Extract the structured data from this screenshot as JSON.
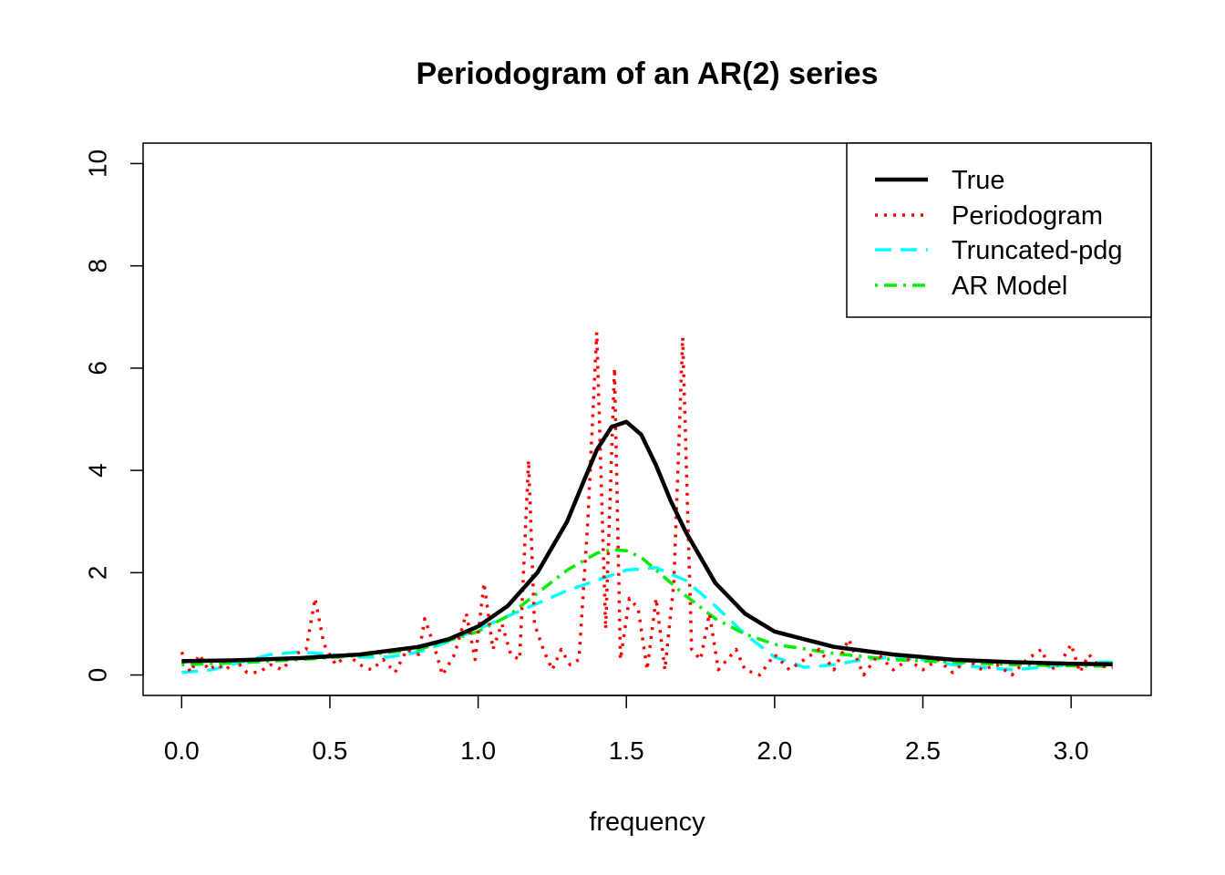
{
  "chart_data": {
    "type": "line",
    "title": "Periodogram of an AR(2) series",
    "xlabel": "frequency",
    "ylabel": "",
    "xlim": [
      -0.13,
      3.27
    ],
    "ylim": [
      -0.4,
      10.4
    ],
    "x_ticks": [
      0.0,
      0.5,
      1.0,
      1.5,
      2.0,
      2.5,
      3.0
    ],
    "x_tick_labels": [
      "0.0",
      "0.5",
      "1.0",
      "1.5",
      "2.0",
      "2.5",
      "3.0"
    ],
    "y_ticks": [
      0,
      2,
      4,
      6,
      8,
      10
    ],
    "y_tick_labels": [
      "0",
      "2",
      "4",
      "6",
      "8",
      "10"
    ],
    "grid": false,
    "legend_position": "top-right",
    "series": [
      {
        "name": "True",
        "color": "#000000",
        "style": "solid",
        "x": [
          0.0,
          0.2,
          0.4,
          0.6,
          0.8,
          0.9,
          1.0,
          1.1,
          1.2,
          1.3,
          1.35,
          1.4,
          1.45,
          1.5,
          1.55,
          1.6,
          1.65,
          1.7,
          1.8,
          1.9,
          2.0,
          2.2,
          2.4,
          2.6,
          2.8,
          3.0,
          3.14
        ],
        "values": [
          0.27,
          0.29,
          0.33,
          0.4,
          0.55,
          0.7,
          0.95,
          1.35,
          2.0,
          3.0,
          3.7,
          4.4,
          4.85,
          4.95,
          4.7,
          4.1,
          3.4,
          2.8,
          1.8,
          1.2,
          0.85,
          0.55,
          0.4,
          0.3,
          0.25,
          0.22,
          0.21
        ]
      },
      {
        "name": "Periodogram",
        "color": "#ff0000",
        "style": "dotted",
        "x": [
          0.0,
          0.03,
          0.06,
          0.09,
          0.12,
          0.15,
          0.18,
          0.22,
          0.26,
          0.3,
          0.34,
          0.38,
          0.42,
          0.45,
          0.48,
          0.52,
          0.56,
          0.6,
          0.64,
          0.68,
          0.72,
          0.76,
          0.8,
          0.82,
          0.85,
          0.88,
          0.92,
          0.96,
          0.99,
          1.02,
          1.05,
          1.08,
          1.11,
          1.14,
          1.17,
          1.19,
          1.22,
          1.25,
          1.28,
          1.31,
          1.34,
          1.37,
          1.4,
          1.43,
          1.46,
          1.48,
          1.51,
          1.54,
          1.57,
          1.6,
          1.63,
          1.66,
          1.69,
          1.72,
          1.75,
          1.78,
          1.81,
          1.84,
          1.87,
          1.9,
          1.95,
          2.0,
          2.05,
          2.1,
          2.15,
          2.2,
          2.25,
          2.3,
          2.35,
          2.4,
          2.45,
          2.5,
          2.55,
          2.6,
          2.65,
          2.7,
          2.75,
          2.8,
          2.85,
          2.9,
          2.93,
          2.96,
          3.0,
          3.03,
          3.06,
          3.09,
          3.12,
          3.14
        ],
        "values": [
          0.45,
          0.05,
          0.4,
          0.1,
          0.2,
          0.1,
          0.3,
          0.05,
          0.05,
          0.2,
          0.1,
          0.4,
          0.5,
          1.5,
          0.6,
          0.2,
          0.4,
          0.2,
          0.1,
          0.3,
          0.05,
          0.5,
          0.4,
          1.1,
          0.6,
          0.0,
          0.4,
          1.2,
          0.3,
          1.8,
          0.5,
          1.0,
          0.4,
          0.3,
          4.2,
          1.0,
          0.5,
          0.1,
          0.5,
          0.2,
          0.3,
          3.0,
          6.7,
          0.9,
          6.0,
          0.3,
          1.5,
          1.3,
          0.1,
          1.5,
          0.1,
          1.8,
          6.6,
          0.5,
          0.3,
          1.2,
          0.1,
          0.3,
          0.5,
          0.1,
          0.0,
          0.4,
          0.1,
          0.3,
          0.5,
          0.1,
          0.7,
          0.0,
          0.4,
          0.1,
          0.3,
          0.1,
          0.3,
          0.05,
          0.3,
          0.1,
          0.2,
          0.0,
          0.3,
          0.5,
          0.1,
          0.2,
          0.6,
          0.05,
          0.4,
          0.2,
          0.15,
          0.15
        ]
      },
      {
        "name": "Truncated-pdg",
        "color": "#00ffff",
        "style": "dashed",
        "x": [
          0.0,
          0.1,
          0.2,
          0.3,
          0.4,
          0.5,
          0.6,
          0.7,
          0.8,
          0.9,
          1.0,
          1.1,
          1.2,
          1.3,
          1.4,
          1.5,
          1.6,
          1.7,
          1.8,
          1.9,
          2.0,
          2.1,
          2.2,
          2.3,
          2.4,
          2.5,
          2.6,
          2.7,
          2.8,
          2.9,
          3.0,
          3.1,
          3.14
        ],
        "values": [
          0.05,
          0.1,
          0.25,
          0.4,
          0.45,
          0.4,
          0.35,
          0.35,
          0.45,
          0.65,
          0.9,
          1.15,
          1.4,
          1.65,
          1.85,
          2.05,
          2.1,
          1.85,
          1.35,
          0.8,
          0.35,
          0.15,
          0.2,
          0.3,
          0.35,
          0.3,
          0.2,
          0.15,
          0.1,
          0.15,
          0.2,
          0.25,
          0.25
        ]
      },
      {
        "name": "AR Model",
        "color": "#00ee00",
        "style": "dotdash",
        "x": [
          0.0,
          0.2,
          0.4,
          0.6,
          0.8,
          1.0,
          1.1,
          1.2,
          1.3,
          1.4,
          1.45,
          1.5,
          1.55,
          1.6,
          1.7,
          1.8,
          1.9,
          2.0,
          2.2,
          2.4,
          2.6,
          2.8,
          3.0,
          3.14
        ],
        "values": [
          0.2,
          0.24,
          0.3,
          0.38,
          0.5,
          0.85,
          1.15,
          1.6,
          2.05,
          2.38,
          2.45,
          2.43,
          2.3,
          2.05,
          1.55,
          1.1,
          0.8,
          0.6,
          0.42,
          0.3,
          0.25,
          0.2,
          0.18,
          0.17
        ]
      }
    ]
  }
}
